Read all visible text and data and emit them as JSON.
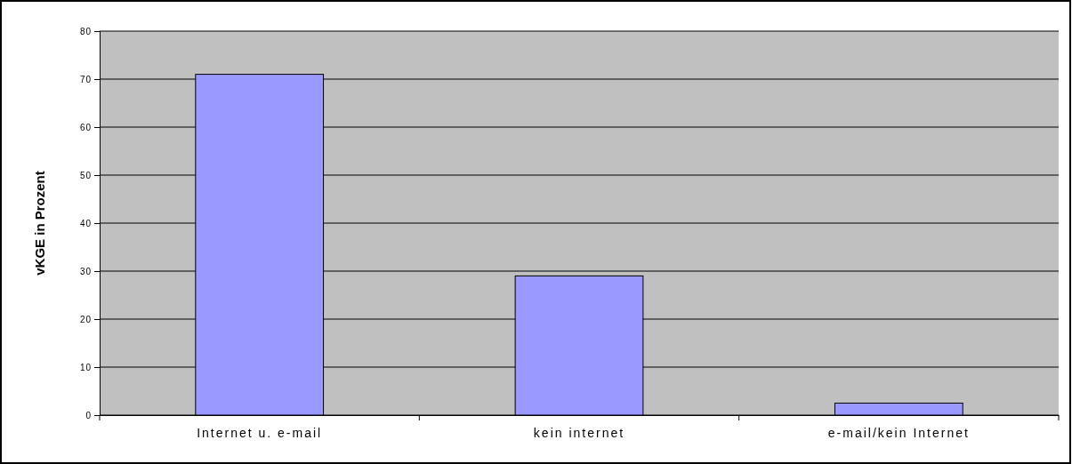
{
  "chart_data": {
    "type": "bar",
    "ylabel": "vKGE in Prozent",
    "categories": [
      "Internet u. e-mail",
      "kein internet",
      "e-mail/kein Internet"
    ],
    "values": [
      71,
      29,
      2.5
    ],
    "color": "#9999ff",
    "ylim": [
      0,
      80
    ],
    "yticks": [
      0,
      10,
      20,
      30,
      40,
      50,
      60,
      70,
      80
    ],
    "grid": "y"
  }
}
